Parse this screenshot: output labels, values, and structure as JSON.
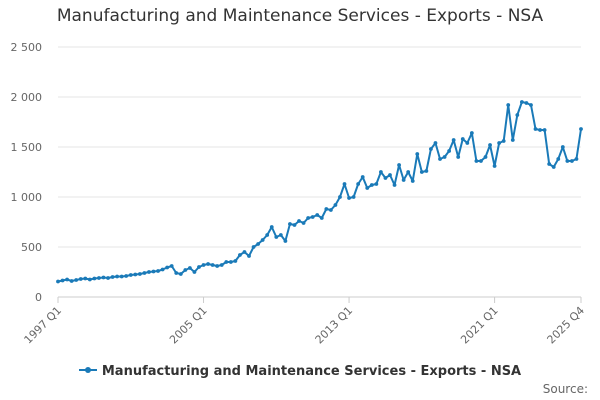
{
  "source_label": "Source:",
  "chart_data": {
    "type": "line",
    "title": "Manufacturing and Maintenance Services - Exports - NSA",
    "xlabel": "",
    "ylabel": "",
    "ylim": [
      0,
      2500
    ],
    "yticks": [
      0,
      500,
      1000,
      1500,
      2000,
      2500
    ],
    "ytick_labels": [
      "0",
      "500",
      "1 000",
      "1 500",
      "2 000",
      "2 500"
    ],
    "xtick_labels": [
      "1997 Q1",
      "2005 Q1",
      "2013 Q1",
      "2021 Q1",
      "2025 Q4"
    ],
    "xtick_index": [
      0,
      32,
      64,
      96,
      115
    ],
    "grid": true,
    "legend_position": "bottom",
    "color": "#1a7ab8",
    "series": [
      {
        "name": "Manufacturing and Maintenance Services - Exports - NSA",
        "values": [
          155,
          165,
          175,
          160,
          170,
          180,
          185,
          175,
          185,
          190,
          195,
          190,
          200,
          205,
          205,
          210,
          220,
          225,
          230,
          240,
          250,
          255,
          260,
          275,
          295,
          310,
          240,
          230,
          270,
          290,
          250,
          300,
          320,
          330,
          320,
          310,
          320,
          350,
          350,
          360,
          420,
          450,
          410,
          500,
          530,
          570,
          620,
          700,
          600,
          620,
          560,
          730,
          720,
          760,
          740,
          790,
          800,
          820,
          790,
          880,
          870,
          920,
          1000,
          1130,
          990,
          1000,
          1130,
          1200,
          1090,
          1120,
          1130,
          1250,
          1190,
          1220,
          1120,
          1320,
          1170,
          1250,
          1160,
          1430,
          1250,
          1260,
          1480,
          1540,
          1380,
          1400,
          1460,
          1570,
          1400,
          1580,
          1540,
          1640,
          1360,
          1360,
          1400,
          1520,
          1310,
          1540,
          1560,
          1920,
          1570,
          1820,
          1950,
          1940,
          1920,
          1680,
          1670,
          1670,
          1330,
          1300,
          1380,
          1500,
          1360,
          1360,
          1380,
          1680
        ]
      }
    ]
  }
}
